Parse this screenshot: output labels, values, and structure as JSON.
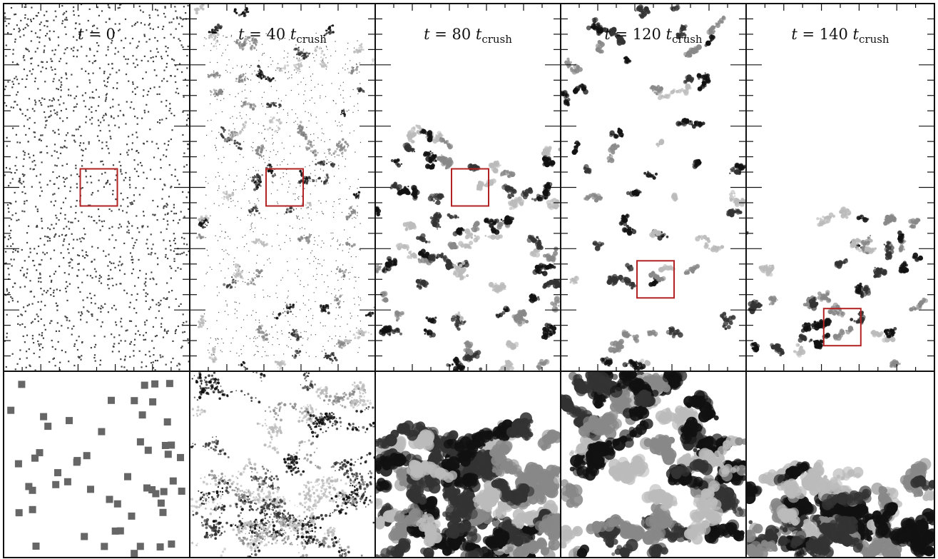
{
  "figure": {
    "panels": [
      {
        "t_value": "0",
        "has_unit": false,
        "clump": "squares",
        "density": 1.0,
        "box": {
          "col": 0.45,
          "row": 0.5
        }
      },
      {
        "t_value": "40",
        "has_unit": true,
        "clump": "specks",
        "density": 0.7,
        "box": {
          "col": 0.45,
          "row": 0.5
        }
      },
      {
        "t_value": "80",
        "has_unit": true,
        "clump": "network",
        "density": 0.75,
        "box": {
          "col": 0.45,
          "row": 0.5
        }
      },
      {
        "t_value": "120",
        "has_unit": true,
        "clump": "network",
        "density": 0.5,
        "box": {
          "col": 0.45,
          "row": 0.75
        }
      },
      {
        "t_value": "140",
        "has_unit": true,
        "clump": "sparse",
        "density": 0.35,
        "box": {
          "col": 0.45,
          "row": 0.88
        }
      }
    ],
    "label_prefix": "t = ",
    "unit_symbol": "t",
    "unit_subscript": "crush",
    "colors": {
      "ink": "#111111",
      "box": "#b22222",
      "gray": "#666666",
      "background": "#ffffff"
    }
  }
}
